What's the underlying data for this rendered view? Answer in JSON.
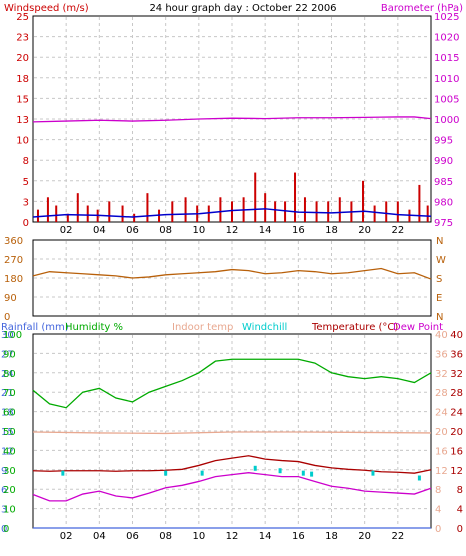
{
  "header": {
    "windspeed_label": "Windspeed (m/s)",
    "title": "24 hour graph day : October 22 2006",
    "barometer_label": "Barometer (hPa)"
  },
  "colors": {
    "windspeed": "#cc0000",
    "wind_avg": "#0000cc",
    "barometer": "#cc00cc",
    "direction": "#b8600a",
    "rainfall": "#4466dd",
    "humidity": "#00aa00",
    "indoor": "#e8a890",
    "windchill": "#00cccc",
    "temperature": "#aa0000",
    "dewpoint": "#cc00cc",
    "frame": "#000000",
    "grid": "#c8c8c8"
  },
  "legend": {
    "rainfall": "Rainfall (mm)",
    "humidity": "Humidity %",
    "indoor": "Indoor temp",
    "windchill": "Windchill",
    "temperature": "Temperature (°C)",
    "dewpoint": "Dew Point"
  },
  "chart_data": [
    {
      "type": "line",
      "name": "wind-and-pressure",
      "x_ticks": [
        "02",
        "04",
        "06",
        "08",
        "10",
        "12",
        "14",
        "16",
        "18",
        "20",
        "22"
      ],
      "xlim": [
        0,
        24
      ],
      "left_axis": {
        "label": "Windspeed (m/s)",
        "ticks": [
          "0",
          "3",
          "5",
          "8",
          "10",
          "13",
          "15",
          "18",
          "20",
          "23",
          "25"
        ],
        "ylim": [
          0,
          25
        ]
      },
      "right_axis": {
        "label": "Barometer (hPa)",
        "ticks": [
          "975",
          "980",
          "985",
          "990",
          "995",
          "1000",
          "1005",
          "1010",
          "1015",
          "1020",
          "1025"
        ],
        "ylim": [
          975,
          1025
        ]
      },
      "series": [
        {
          "name": "Windspeed (m/s)",
          "type": "bar",
          "axis": "left",
          "x": [
            0.3,
            0.9,
            1.4,
            2.1,
            2.7,
            3.3,
            3.9,
            4.6,
            5.4,
            6.1,
            6.9,
            7.6,
            8.4,
            9.2,
            9.9,
            10.6,
            11.3,
            12.0,
            12.7,
            13.4,
            14.0,
            14.6,
            15.2,
            15.8,
            16.4,
            17.1,
            17.8,
            18.5,
            19.2,
            19.9,
            20.6,
            21.3,
            22.0,
            22.7,
            23.3,
            23.8
          ],
          "values": [
            1.5,
            3.0,
            2.0,
            1.0,
            3.5,
            2.0,
            1.5,
            2.5,
            2.0,
            1.0,
            3.5,
            1.5,
            2.5,
            3.0,
            2.0,
            2.0,
            3.0,
            2.5,
            3.0,
            6.0,
            3.5,
            2.5,
            2.5,
            6.0,
            3.0,
            2.5,
            2.5,
            3.0,
            2.5,
            5.0,
            2.0,
            2.5,
            2.5,
            1.5,
            4.5,
            2.0
          ]
        },
        {
          "name": "Average wind",
          "type": "line",
          "axis": "left",
          "x": [
            0,
            2,
            4,
            6,
            8,
            10,
            12,
            14,
            16,
            18,
            20,
            22,
            24
          ],
          "values": [
            0.6,
            0.9,
            0.8,
            0.6,
            0.9,
            1.0,
            1.4,
            1.6,
            1.2,
            1.1,
            1.3,
            0.9,
            0.7
          ]
        },
        {
          "name": "Barometer (hPa)",
          "type": "line",
          "axis": "right",
          "x": [
            0,
            2,
            4,
            6,
            8,
            10,
            12,
            14,
            16,
            18,
            20,
            22,
            23,
            24
          ],
          "values": [
            999.3,
            999.5,
            999.7,
            999.5,
            999.7,
            1000.0,
            1000.2,
            1000.1,
            1000.3,
            1000.3,
            1000.4,
            1000.5,
            1000.5,
            1000.1
          ]
        }
      ]
    },
    {
      "type": "line",
      "name": "wind-direction",
      "x_ticks": [
        "02",
        "04",
        "06",
        "08",
        "10",
        "12",
        "14",
        "16",
        "18",
        "20",
        "22"
      ],
      "xlim": [
        0,
        24
      ],
      "left_axis": {
        "ticks": [
          "0",
          "90",
          "180",
          "270",
          "360"
        ],
        "ylim": [
          0,
          360
        ]
      },
      "right_axis": {
        "ticks": [
          "N",
          "E",
          "S",
          "W",
          "N"
        ]
      },
      "series": [
        {
          "name": "Wind direction",
          "axis": "left",
          "x": [
            0,
            1,
            2,
            3,
            4,
            5,
            6,
            7,
            8,
            9,
            10,
            11,
            12,
            13,
            14,
            15,
            16,
            17,
            18,
            19,
            20,
            21,
            22,
            23,
            24
          ],
          "values": [
            190,
            210,
            205,
            200,
            195,
            190,
            180,
            185,
            195,
            200,
            205,
            210,
            220,
            215,
            200,
            205,
            215,
            210,
            200,
            205,
            215,
            225,
            200,
            205,
            175
          ]
        }
      ]
    },
    {
      "type": "line",
      "name": "humidity-and-temperature",
      "x_ticks": [
        "02",
        "04",
        "06",
        "08",
        "10",
        "12",
        "14",
        "16",
        "18",
        "20",
        "22"
      ],
      "xlim": [
        0,
        24
      ],
      "axes": {
        "rainfall": {
          "ticks": [
            "0",
            "3",
            "6",
            "9",
            "12",
            "15",
            "18",
            "21",
            "24",
            "27",
            "30"
          ],
          "ylim": [
            0,
            30
          ]
        },
        "humidity": {
          "ticks": [
            "0",
            "10",
            "20",
            "30",
            "40",
            "50",
            "60",
            "70",
            "80",
            "90",
            "100"
          ],
          "ylim": [
            0,
            100
          ]
        },
        "temp_outer": {
          "ticks": [
            "0",
            "4",
            "8",
            "12",
            "16",
            "20",
            "24",
            "28",
            "32",
            "36",
            "40"
          ],
          "ylim": [
            0,
            40
          ]
        },
        "temp_inner": {
          "ticks": [
            "0",
            "4",
            "8",
            "12",
            "16",
            "20",
            "24",
            "28",
            "32",
            "36",
            "40"
          ],
          "ylim": [
            0,
            40
          ]
        }
      },
      "series": [
        {
          "name": "Humidity %",
          "axis": "humidity",
          "x": [
            0,
            1,
            2,
            3,
            4,
            5,
            6,
            7,
            8,
            9,
            10,
            11,
            12,
            13,
            14,
            15,
            16,
            17,
            18,
            19,
            20,
            21,
            22,
            23,
            24
          ],
          "values": [
            71,
            64,
            62,
            70,
            72,
            67,
            65,
            70,
            73,
            76,
            80,
            86,
            87,
            87,
            87,
            87,
            87,
            85,
            80,
            78,
            77,
            78,
            77,
            75,
            80
          ]
        },
        {
          "name": "Indoor temp",
          "axis": "temp_inner",
          "x": [
            0,
            4,
            8,
            12,
            16,
            20,
            24
          ],
          "values": [
            19.8,
            19.6,
            19.5,
            19.8,
            19.8,
            19.7,
            19.6
          ]
        },
        {
          "name": "Temperature (°C)",
          "axis": "temp_outer",
          "x": [
            0,
            1,
            2,
            3,
            4,
            5,
            6,
            7,
            8,
            9,
            10,
            11,
            12,
            13,
            14,
            15,
            16,
            17,
            18,
            19,
            20,
            21,
            22,
            23,
            24
          ],
          "values": [
            11.8,
            11.7,
            11.8,
            11.8,
            11.8,
            11.7,
            11.8,
            11.8,
            11.9,
            12.1,
            12.9,
            13.9,
            14.4,
            14.9,
            14.2,
            13.9,
            13.7,
            12.9,
            12.4,
            12.1,
            11.9,
            11.6,
            11.5,
            11.3,
            12.0
          ]
        },
        {
          "name": "Windchill",
          "axis": "temp_outer",
          "x": [
            1.8,
            8.0,
            10.2,
            13.4,
            14.9,
            16.3,
            16.8,
            20.5,
            23.3
          ],
          "values": [
            11.0,
            11.0,
            11.0,
            12.0,
            11.5,
            11.0,
            10.8,
            11.0,
            10.0
          ]
        },
        {
          "name": "Dew Point",
          "axis": "temp_outer",
          "x": [
            0,
            1,
            2,
            3,
            4,
            5,
            6,
            7,
            8,
            9,
            10,
            11,
            12,
            13,
            14,
            15,
            16,
            17,
            18,
            19,
            20,
            21,
            22,
            23,
            24
          ],
          "values": [
            6.9,
            5.6,
            5.6,
            7.0,
            7.6,
            6.6,
            6.2,
            7.2,
            8.3,
            8.8,
            9.6,
            10.6,
            11.0,
            11.4,
            11.0,
            10.6,
            10.6,
            9.6,
            8.6,
            8.2,
            7.6,
            7.4,
            7.2,
            7.0,
            8.2
          ]
        },
        {
          "name": "Rainfall (mm)",
          "axis": "rainfall",
          "x": [
            0,
            24
          ],
          "values": [
            0,
            0
          ]
        }
      ]
    }
  ]
}
